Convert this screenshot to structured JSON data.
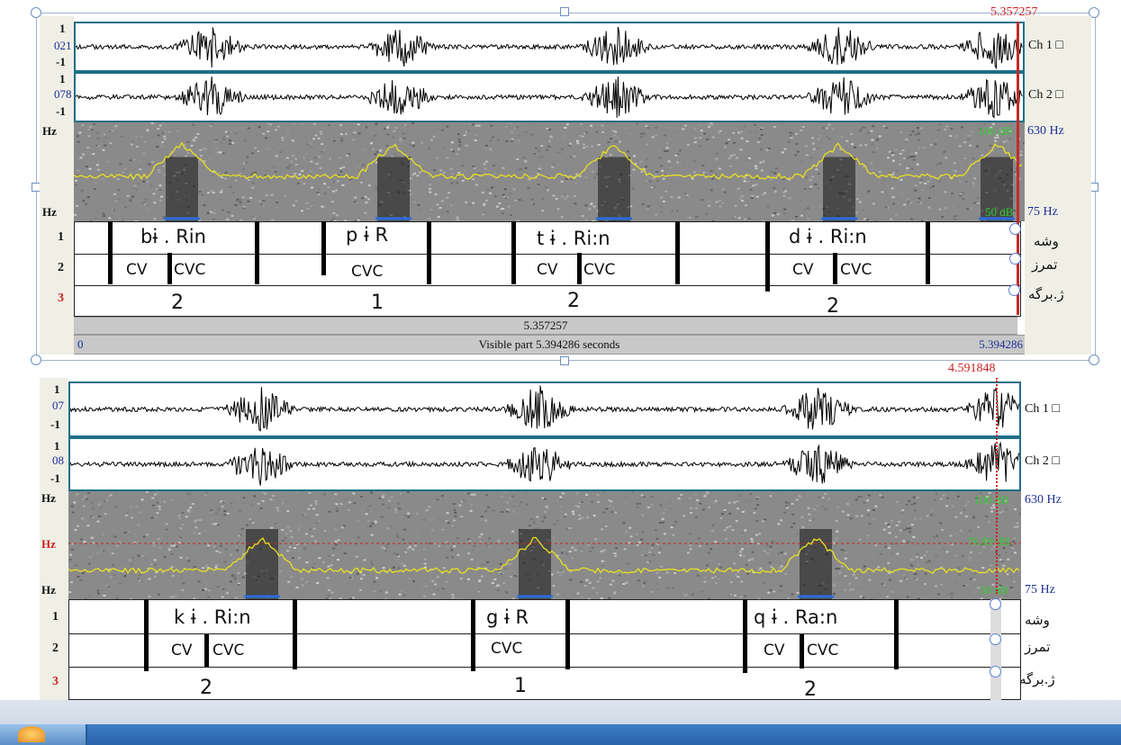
{
  "top_panel": {
    "cursor_time_top": "5.357257",
    "channel_labels": [
      "Ch 1 □",
      "Ch 2 □"
    ],
    "wave_axis": {
      "one": "1",
      "minus_one": "-1",
      "ch1_val": "021",
      "ch2_val": "078"
    },
    "hz_label": "Hz",
    "freq_top": "630 Hz",
    "freq_bottom": "75 Hz",
    "db_top": "100 dB",
    "db_bottom": "50 dB",
    "tier_numbers": [
      "1",
      "2",
      "3"
    ],
    "tier_names": [
      "وشه",
      "تمرز",
      "ژ.برگه"
    ],
    "words": [
      "bɨ . Rin",
      "p ɨ R",
      "t ɨ . Ri:n",
      "d ɨ . Ri:n"
    ],
    "syllables": [
      [
        "CV",
        "CVC"
      ],
      [
        "CVC"
      ],
      [
        "CV",
        "CVC"
      ],
      [
        "CV",
        "CVC"
      ]
    ],
    "syllable_counts": [
      "2",
      "1",
      "2",
      "2"
    ],
    "selection_time": "5.357257",
    "visible_start": "0",
    "visible_text": "Visible part 5.394286 seconds",
    "visible_end": "5.394286"
  },
  "bottom_panel": {
    "cursor_time": "4.591848",
    "channel_labels": [
      "Ch 1 □",
      "Ch 2 □"
    ],
    "wave_axis": {
      "one": "1",
      "minus_one": "-1",
      "ch1_val": "07",
      "ch2_val": "08"
    },
    "hz_label": "Hz",
    "freq_top": "630 Hz",
    "freq_bottom": "75 Hz",
    "db_top": "100 dB",
    "db_mid": "76.89 dB",
    "db_bottom": "50 dB",
    "tier_numbers": [
      "1",
      "2",
      "3"
    ],
    "tier_names": [
      "وشه",
      "تمرز",
      "ژ.برگه"
    ],
    "words": [
      "k ɨ . Ri:n",
      "g ɨ R",
      "q ɨ . Ra:n"
    ],
    "syllables": [
      [
        "CV",
        "CVC"
      ],
      [
        "CVC"
      ],
      [
        "CV",
        "CVC"
      ]
    ],
    "syllable_counts": [
      "2",
      "1",
      "2"
    ]
  },
  "colors": {
    "waveform": "#000000",
    "border": "#1f6f87",
    "pitch": "#e8e020",
    "intensity_label": "#33cc33",
    "axis_label": "#1d2f99",
    "cursor": "#cc2222"
  }
}
